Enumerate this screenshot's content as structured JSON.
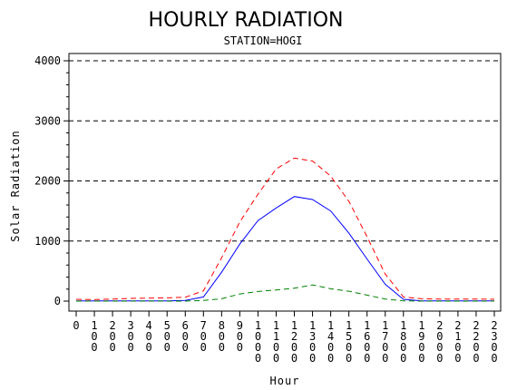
{
  "chart_data": {
    "type": "line",
    "title": "HOURLY RADIATION",
    "subtitle": "STATION=HOGI",
    "xlabel": "Hour",
    "ylabel": "Solar Radiation",
    "ylim": [
      0,
      4000
    ],
    "yticks": [
      0,
      1000,
      2000,
      3000,
      4000
    ],
    "grid": "horizontal-dashed",
    "x": [
      0,
      1,
      2,
      3,
      4,
      5,
      6,
      7,
      8,
      9,
      10,
      11,
      12,
      13,
      14,
      15,
      16,
      17,
      18,
      19,
      20,
      21,
      22,
      23
    ],
    "xtick_labels": [
      [
        "0"
      ],
      [
        "1",
        "0",
        "0"
      ],
      [
        "2",
        "0",
        "0"
      ],
      [
        "3",
        "0",
        "0"
      ],
      [
        "4",
        "0",
        "0"
      ],
      [
        "5",
        "0",
        "0"
      ],
      [
        "6",
        "0",
        "0"
      ],
      [
        "7",
        "0",
        "0"
      ],
      [
        "8",
        "0",
        "0"
      ],
      [
        "9",
        "0",
        "0"
      ],
      [
        "1",
        "0",
        "0",
        "0"
      ],
      [
        "1",
        "1",
        "0",
        "0"
      ],
      [
        "1",
        "2",
        "0",
        "0"
      ],
      [
        "1",
        "3",
        "0",
        "0"
      ],
      [
        "1",
        "4",
        "0",
        "0"
      ],
      [
        "1",
        "5",
        "0",
        "0"
      ],
      [
        "1",
        "6",
        "0",
        "0"
      ],
      [
        "1",
        "7",
        "0",
        "0"
      ],
      [
        "1",
        "8",
        "0",
        "0"
      ],
      [
        "1",
        "9",
        "0",
        "0"
      ],
      [
        "2",
        "0",
        "0",
        "0"
      ],
      [
        "2",
        "1",
        "0",
        "0"
      ],
      [
        "2",
        "2",
        "0",
        "0"
      ],
      [
        "2",
        "3",
        "0",
        "0"
      ]
    ],
    "series": [
      {
        "color": "#ff0000",
        "style": "dashed",
        "values": [
          30,
          25,
          35,
          45,
          50,
          55,
          65,
          170,
          720,
          1320,
          1780,
          2200,
          2380,
          2330,
          2080,
          1660,
          1070,
          450,
          70,
          40,
          35,
          35,
          35,
          30
        ]
      },
      {
        "color": "#0000ff",
        "style": "solid",
        "values": [
          5,
          5,
          5,
          5,
          5,
          5,
          10,
          70,
          480,
          950,
          1340,
          1550,
          1740,
          1690,
          1500,
          1130,
          700,
          280,
          30,
          5,
          5,
          5,
          5,
          5
        ]
      },
      {
        "color": "#008000",
        "style": "dashed",
        "values": [
          0,
          0,
          0,
          0,
          0,
          0,
          0,
          10,
          40,
          120,
          160,
          185,
          215,
          270,
          205,
          165,
          100,
          35,
          5,
          0,
          0,
          0,
          0,
          0
        ]
      }
    ]
  }
}
